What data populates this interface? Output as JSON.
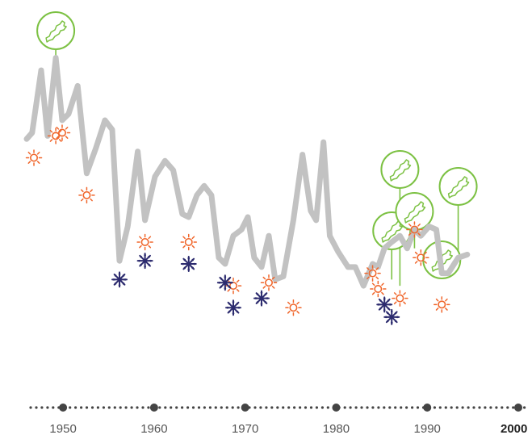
{
  "chart_data": {
    "type": "line",
    "title": "",
    "xlabel": "",
    "ylabel": "",
    "xlim": [
      1946,
      2000
    ],
    "ylim": [
      0,
      100
    ],
    "grid": false,
    "x_ticks": [
      "1950",
      "1960",
      "1970",
      "1980",
      "1990",
      "2000"
    ],
    "line_color": "#c2c2c2",
    "series": [
      {
        "values": [
          [
            1946.0,
            71
          ],
          [
            1946.6,
            73
          ],
          [
            1947.6,
            93
          ],
          [
            1948.3,
            72
          ],
          [
            1949.2,
            97
          ],
          [
            1949.9,
            77
          ],
          [
            1950.6,
            79
          ],
          [
            1951.6,
            88
          ],
          [
            1952.6,
            60
          ],
          [
            1953.6,
            68
          ],
          [
            1954.6,
            77
          ],
          [
            1955.4,
            74
          ],
          [
            1956.2,
            32
          ],
          [
            1957.1,
            43
          ],
          [
            1958.2,
            67
          ],
          [
            1959.0,
            45
          ],
          [
            1960.1,
            59
          ],
          [
            1961.2,
            64
          ],
          [
            1962.1,
            61
          ],
          [
            1963.1,
            47
          ],
          [
            1963.8,
            46
          ],
          [
            1964.7,
            53
          ],
          [
            1965.5,
            56
          ],
          [
            1966.3,
            53
          ],
          [
            1967.1,
            33
          ],
          [
            1967.8,
            31
          ],
          [
            1968.7,
            40
          ],
          [
            1969.6,
            42
          ],
          [
            1970.3,
            46
          ],
          [
            1971.0,
            33
          ],
          [
            1971.8,
            30
          ],
          [
            1972.6,
            40
          ],
          [
            1973.3,
            26
          ],
          [
            1974.2,
            27
          ],
          [
            1975.3,
            45
          ],
          [
            1976.3,
            66
          ],
          [
            1977.2,
            48
          ],
          [
            1977.8,
            45
          ],
          [
            1978.6,
            70
          ],
          [
            1979.3,
            40
          ],
          [
            1980.2,
            35
          ],
          [
            1981.3,
            30
          ],
          [
            1982.1,
            30
          ],
          [
            1983.0,
            24
          ],
          [
            1984.0,
            31
          ],
          [
            1984.6,
            30
          ],
          [
            1985.3,
            36
          ],
          [
            1986.1,
            38
          ],
          [
            1987.0,
            40
          ],
          [
            1987.8,
            36
          ],
          [
            1988.6,
            42
          ],
          [
            1989.3,
            40
          ],
          [
            1990.2,
            43
          ],
          [
            1991.0,
            42
          ],
          [
            1991.6,
            28
          ],
          [
            1992.3,
            28
          ],
          [
            1993.4,
            33
          ],
          [
            1994.4,
            34
          ]
        ]
      }
    ],
    "weather_markers": [
      {
        "type": "sun",
        "x": 1946.8,
        "y": 65
      },
      {
        "type": "sun",
        "x": 1949.2,
        "y": 72
      },
      {
        "type": "sun",
        "x": 1949.9,
        "y": 73
      },
      {
        "type": "sun",
        "x": 1952.6,
        "y": 53
      },
      {
        "type": "sun",
        "x": 1959.0,
        "y": 38
      },
      {
        "type": "sun",
        "x": 1963.8,
        "y": 38
      },
      {
        "type": "sun",
        "x": 1968.7,
        "y": 24
      },
      {
        "type": "sun",
        "x": 1972.6,
        "y": 25
      },
      {
        "type": "sun",
        "x": 1975.3,
        "y": 17
      },
      {
        "type": "sun",
        "x": 1984.0,
        "y": 28
      },
      {
        "type": "sun",
        "x": 1984.6,
        "y": 23
      },
      {
        "type": "sun",
        "x": 1987.0,
        "y": 20
      },
      {
        "type": "sun",
        "x": 1988.6,
        "y": 42
      },
      {
        "type": "sun",
        "x": 1989.3,
        "y": 33
      },
      {
        "type": "sun",
        "x": 1991.6,
        "y": 18
      },
      {
        "type": "snow",
        "x": 1956.2,
        "y": 26
      },
      {
        "type": "snow",
        "x": 1959.0,
        "y": 32
      },
      {
        "type": "snow",
        "x": 1963.8,
        "y": 31
      },
      {
        "type": "snow",
        "x": 1967.8,
        "y": 25
      },
      {
        "type": "snow",
        "x": 1968.7,
        "y": 17
      },
      {
        "type": "snow",
        "x": 1971.8,
        "y": 20
      },
      {
        "type": "snow",
        "x": 1985.3,
        "y": 18
      },
      {
        "type": "snow",
        "x": 1986.1,
        "y": 14
      }
    ],
    "map_markers": [
      {
        "x": 1949.2,
        "y": 97,
        "level": 1
      },
      {
        "x": 1987.0,
        "y": 24,
        "level": 2
      },
      {
        "x": 1986.1,
        "y": 26,
        "level": 3
      },
      {
        "x": 1988.6,
        "y": 36,
        "level": 2
      },
      {
        "x": 1993.4,
        "y": 33,
        "level": 2
      },
      {
        "x": 1991.6,
        "y": 28,
        "level": 3
      }
    ],
    "colors": {
      "sun": "#f0662b",
      "snow": "#2c2b6e",
      "map": "#7cc143",
      "axis": "#444444"
    }
  }
}
